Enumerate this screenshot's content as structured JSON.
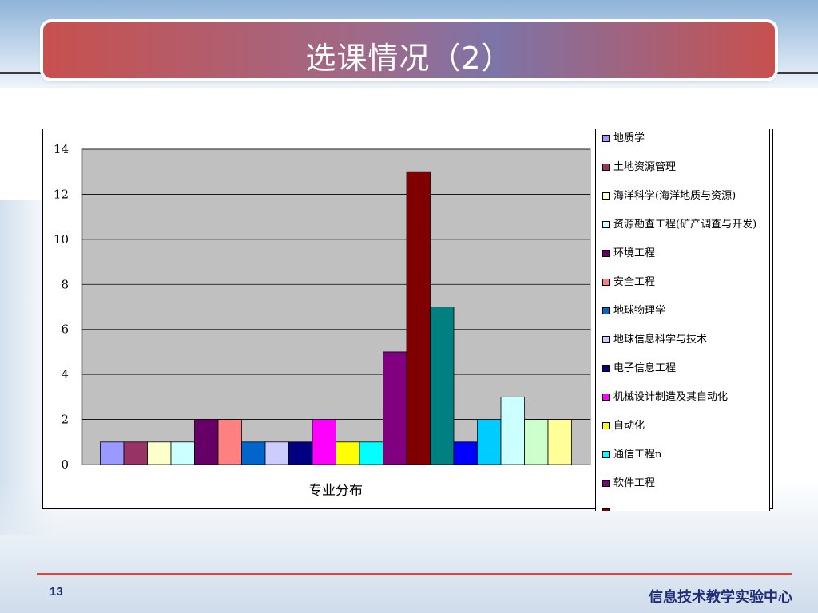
{
  "slide": {
    "title": "选课情况（2）",
    "page_number": "13",
    "footer": "信息技术教学实验中心"
  },
  "chart_data": {
    "type": "bar",
    "xlabel": "专业分布",
    "ylim": [
      0,
      14
    ],
    "yticks": [
      "0",
      "2",
      "4",
      "6",
      "8",
      "10",
      "12",
      "14"
    ],
    "plot_background": "#c0c0c0",
    "grid": true,
    "legend_position": "right",
    "series": [
      {
        "name": "地质学",
        "value": 1,
        "color": "#9999ff"
      },
      {
        "name": "土地资源管理",
        "value": 1,
        "color": "#993366"
      },
      {
        "name": "海洋科学(海洋地质与资源)",
        "value": 1,
        "color": "#ffffcc"
      },
      {
        "name": "资源勘查工程(矿产调查与开发)",
        "value": 1,
        "color": "#ccffff"
      },
      {
        "name": "环境工程",
        "value": 2,
        "color": "#660066"
      },
      {
        "name": "安全工程",
        "value": 2,
        "color": "#ff8080"
      },
      {
        "name": "地球物理学",
        "value": 1,
        "color": "#0066cc"
      },
      {
        "name": "地球信息科学与技术",
        "value": 1,
        "color": "#ccccff"
      },
      {
        "name": "电子信息工程",
        "value": 1,
        "color": "#000080"
      },
      {
        "name": "机械设计制造及其自动化",
        "value": 2,
        "color": "#ff00ff"
      },
      {
        "name": "自动化",
        "value": 1,
        "color": "#ffff00"
      },
      {
        "name": "通信工程n",
        "value": 1,
        "color": "#00ffff"
      },
      {
        "name": "软件工程",
        "value": 5,
        "color": "#800080"
      },
      {
        "name": "",
        "value": 13,
        "color": "#800000"
      },
      {
        "name": "",
        "value": 7,
        "color": "#008080"
      },
      {
        "name": "",
        "value": 1,
        "color": "#0000ff"
      },
      {
        "name": "",
        "value": 2,
        "color": "#00ccff"
      },
      {
        "name": "",
        "value": 3,
        "color": "#ccffff"
      },
      {
        "name": "",
        "value": 2,
        "color": "#ccffcc"
      },
      {
        "name": "",
        "value": 2,
        "color": "#ffff99"
      }
    ]
  }
}
